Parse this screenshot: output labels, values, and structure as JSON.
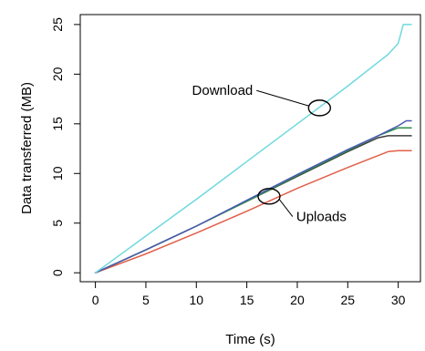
{
  "chart_data": {
    "type": "line",
    "xlabel": "Time (s)",
    "ylabel": "Data transferred (MB)",
    "xlim": [
      -1.5,
      32.2
    ],
    "ylim": [
      -0.9,
      26
    ],
    "xticks": [
      0,
      5,
      10,
      15,
      20,
      25,
      30
    ],
    "yticks": [
      0,
      5,
      10,
      15,
      20,
      25
    ],
    "grid": false,
    "series": [
      {
        "color": "#6fd9dd",
        "x": [
          0,
          5,
          10,
          15,
          20,
          25,
          28,
          29,
          30,
          30.5,
          31.3
        ],
        "y": [
          0,
          3.7,
          7.4,
          11.2,
          15.0,
          18.8,
          21.2,
          22.0,
          23.1,
          25.0,
          25.0
        ]
      },
      {
        "color": "#4a5bb0",
        "x": [
          0,
          5,
          10,
          15,
          20,
          25,
          28,
          29,
          30,
          30.8,
          31.3
        ],
        "y": [
          0,
          2.3,
          4.7,
          7.3,
          9.9,
          12.4,
          13.8,
          14.3,
          14.8,
          15.3,
          15.3
        ]
      },
      {
        "color": "#2f8f4e",
        "x": [
          0,
          5,
          10,
          15,
          20,
          25,
          28,
          29,
          30,
          31.3
        ],
        "y": [
          0,
          2.3,
          4.7,
          7.2,
          9.8,
          12.3,
          13.8,
          14.2,
          14.6,
          14.6
        ]
      },
      {
        "color": "#3d3d3d",
        "x": [
          0,
          5,
          10,
          15,
          20,
          25,
          28,
          29,
          29.5,
          31.3
        ],
        "y": [
          0,
          2.3,
          4.7,
          7.2,
          9.7,
          12.2,
          13.6,
          13.8,
          13.8,
          13.8
        ]
      },
      {
        "color": "#e0604a",
        "x": [
          0,
          5,
          10,
          15,
          20,
          25,
          28,
          29,
          30,
          31.3
        ],
        "y": [
          0,
          1.9,
          4.0,
          6.2,
          8.5,
          10.6,
          11.8,
          12.2,
          12.3,
          12.3
        ]
      }
    ],
    "annotations": [
      {
        "text": "Download",
        "anchor": [
          22.2,
          16.6
        ],
        "text_at": [
          15.6,
          17.9
        ],
        "align": "right"
      },
      {
        "text": "Uploads",
        "anchor": [
          17.2,
          7.7
        ],
        "text_at": [
          19.9,
          5.2
        ],
        "align": "left"
      }
    ]
  }
}
